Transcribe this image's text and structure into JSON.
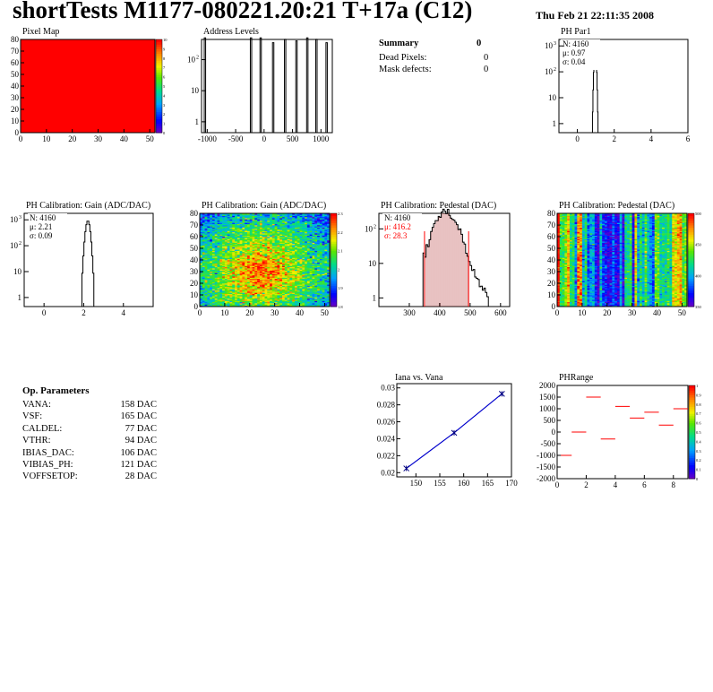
{
  "header": {
    "title": "shortTests M1177-080221.20:21 T+17a (C12)",
    "date": "Thu Feb 21 22:11:35 2008"
  },
  "summary": {
    "heading": "Summary",
    "heading_value": "0",
    "rows": [
      {
        "label": "Dead Pixels:",
        "value": "0"
      },
      {
        "label": "Mask defects:",
        "value": "0"
      }
    ]
  },
  "op_params": {
    "heading": "Op. Parameters",
    "rows": [
      {
        "label": "VANA:",
        "value": "158 DAC"
      },
      {
        "label": "VSF:",
        "value": "165 DAC"
      },
      {
        "label": "CALDEL:",
        "value": "77 DAC"
      },
      {
        "label": "VTHR:",
        "value": "94 DAC"
      },
      {
        "label": "IBIAS_DAC:",
        "value": "106 DAC"
      },
      {
        "label": "VIBIAS_PH:",
        "value": "121 DAC"
      },
      {
        "label": "VOFFSETOP:",
        "value": "28 DAC"
      }
    ]
  },
  "colors": {
    "hist": "#000000",
    "red": "#ff0000",
    "fit": "#0000cc",
    "marker": "#000080"
  },
  "chart_data": [
    {
      "id": "pixel_map",
      "type": "heatmap",
      "title": "Pixel Map",
      "xlim": [
        0,
        52
      ],
      "ylim": [
        0,
        80
      ],
      "xticks": [
        "0",
        "10",
        "20",
        "30",
        "40",
        "50"
      ],
      "yticks": [
        "0",
        "10",
        "20",
        "30",
        "40",
        "50",
        "60",
        "70",
        "80"
      ],
      "palette_ticks": [
        "0",
        "1",
        "2",
        "3",
        "4",
        "5",
        "6",
        "7",
        "8",
        "9",
        "10"
      ],
      "uniform_value": 10
    },
    {
      "id": "address_levels",
      "type": "bar",
      "title": "Address Levels",
      "xlim": [
        -1100,
        1200
      ],
      "ylog": true,
      "xticks": [
        "-1000",
        "-500",
        "0",
        "500",
        "1000"
      ],
      "yticks": [
        "1",
        "10",
        "10^2"
      ],
      "peaks": [
        {
          "x": -1040,
          "y": 500
        },
        {
          "x": -230,
          "y": 500
        },
        {
          "x": -60,
          "y": 500
        },
        {
          "x": 160,
          "y": 350
        },
        {
          "x": 370,
          "y": 450
        },
        {
          "x": 570,
          "y": 400
        },
        {
          "x": 760,
          "y": 500
        },
        {
          "x": 920,
          "y": 450
        },
        {
          "x": 1100,
          "y": 350
        }
      ]
    },
    {
      "id": "ph_par1",
      "type": "bar",
      "title": "PH Par1",
      "xlim": [
        -1,
        6
      ],
      "ylog": true,
      "xticks": [
        "0",
        "2",
        "4",
        "6"
      ],
      "yticks": [
        "1",
        "10",
        "10^2",
        "10^3"
      ],
      "stats": {
        "N": "N: 4160",
        "mean": "μ: 0.97",
        "sigma": "σ: 0.04"
      },
      "mean": 0.97,
      "sigma": 0.04,
      "entries": 4160
    },
    {
      "id": "gain_hist",
      "type": "bar",
      "title": "PH Calibration: Gain (ADC/DAC)",
      "xlim": [
        -1,
        5.5
      ],
      "ylog": true,
      "xticks": [
        "0",
        "2",
        "4"
      ],
      "yticks": [
        "1",
        "10",
        "10^2",
        "10^3"
      ],
      "stats": {
        "N": "N: 4160",
        "mean": "μ: 2.21",
        "sigma": "σ: 0.09"
      },
      "mean": 2.21,
      "sigma": 0.09,
      "entries": 4160
    },
    {
      "id": "gain_map",
      "type": "heatmap",
      "title": "PH Calibration: Gain (ADC/DAC)",
      "xlim": [
        0,
        52
      ],
      "ylim": [
        0,
        80
      ],
      "xticks": [
        "0",
        "10",
        "20",
        "30",
        "40",
        "50"
      ],
      "yticks": [
        "0",
        "10",
        "20",
        "30",
        "40",
        "50",
        "60",
        "70",
        "80"
      ],
      "palette_ticks": [
        "1.8",
        "1.9",
        "2",
        "2.1",
        "2.2",
        "2.3"
      ],
      "zlim": [
        1.8,
        2.35
      ]
    },
    {
      "id": "pedestal_hist",
      "type": "bar",
      "title": "PH Calibration: Pedestal (DAC)",
      "xlim": [
        200,
        630
      ],
      "ylog": true,
      "xticks": [
        "300",
        "400",
        "500",
        "600"
      ],
      "yticks": [
        "1",
        "10",
        "10^2"
      ],
      "stats": {
        "N": "N: 4160",
        "mean": "μ: 416.2",
        "sigma": "σ: 28.3"
      },
      "mean": 416.2,
      "sigma": 28.3,
      "entries": 4160,
      "cut_lines": [
        350,
        495
      ]
    },
    {
      "id": "pedestal_map",
      "type": "heatmap",
      "title": "PH Calibration: Pedestal (DAC)",
      "xlim": [
        0,
        52
      ],
      "ylim": [
        0,
        80
      ],
      "xticks": [
        "0",
        "10",
        "20",
        "30",
        "40",
        "50"
      ],
      "yticks": [
        "0",
        "10",
        "20",
        "30",
        "40",
        "50",
        "60",
        "70",
        "80"
      ],
      "palette_ticks": [
        "350",
        "400",
        "450",
        "500"
      ],
      "zlim": [
        340,
        520
      ]
    },
    {
      "id": "iana_vana",
      "type": "line",
      "title": "Iana vs. Vana",
      "xlim": [
        146,
        170
      ],
      "ylim": [
        0.0195,
        0.0305
      ],
      "xticks": [
        "150",
        "155",
        "160",
        "165",
        "170"
      ],
      "yticks": [
        "0.02",
        "0.022",
        "0.024",
        "0.026",
        "0.028",
        "0.03"
      ],
      "x": [
        148,
        158,
        168
      ],
      "y": [
        0.0205,
        0.0247,
        0.0293
      ]
    },
    {
      "id": "ph_range",
      "type": "scatter",
      "title": "PHRange",
      "xlim": [
        0,
        9
      ],
      "ylim": [
        -2000,
        2000
      ],
      "xticks": [
        "0",
        "2",
        "4",
        "6",
        "8"
      ],
      "yticks": [
        "-2000",
        "-1500",
        "-1000",
        "-500",
        "0",
        "500",
        "1000",
        "1500",
        "2000"
      ],
      "palette_ticks": [
        "0",
        "0.1",
        "0.2",
        "0.3",
        "0.4",
        "0.5",
        "0.6",
        "0.7",
        "0.8",
        "0.9",
        "1"
      ],
      "x": [
        0.5,
        1.5,
        2.5,
        3.5,
        4.5,
        5.5,
        6.5,
        7.5,
        8.5
      ],
      "y": [
        -1000,
        0,
        1500,
        -300,
        1100,
        600,
        850,
        300,
        1000
      ]
    }
  ]
}
